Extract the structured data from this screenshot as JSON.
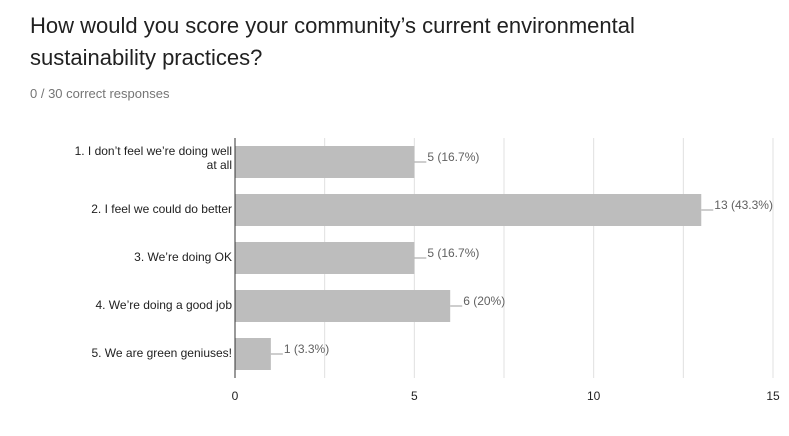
{
  "question": {
    "title": "How would you score your community’s current environmental sustainability practices?",
    "responses": "0 / 30 correct responses"
  },
  "colors": {
    "bar": "#bdbdbd",
    "grid": "#e0e0e0",
    "axis": "#333333",
    "text": "#212121",
    "label": "#616161"
  },
  "chart_data": {
    "type": "bar",
    "orientation": "horizontal",
    "categories": [
      [
        "1. I don’t feel we’re doing well",
        "at all"
      ],
      [
        "2. I feel we could do better"
      ],
      [
        "3. We’re doing OK"
      ],
      [
        "4. We’re doing a good job"
      ],
      [
        "5. We are green geniuses!"
      ]
    ],
    "values": [
      5,
      13,
      5,
      6,
      1
    ],
    "data_labels": [
      "5 (16.7%)",
      "13 (43.3%)",
      "5 (16.7%)",
      "6 (20%)",
      "1 (3.3%)"
    ],
    "xlim": [
      0,
      15
    ],
    "xticks": [
      0,
      5,
      10,
      15
    ],
    "grid": true
  }
}
